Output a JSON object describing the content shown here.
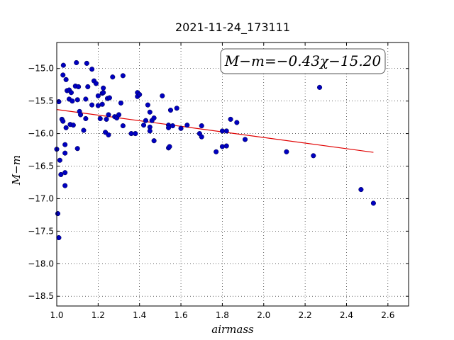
{
  "chart_data": {
    "type": "scatter",
    "title": "2021-11-24_173111",
    "xlabel": "airmass",
    "ylabel": "M−m",
    "xlim": [
      1.0,
      2.7
    ],
    "ylim": [
      -18.65,
      -14.6
    ],
    "x_ticks": [
      1.0,
      1.2,
      1.4,
      1.6,
      1.8,
      2.0,
      2.2,
      2.4,
      2.6
    ],
    "x_tick_labels": [
      "1.0",
      "1.2",
      "1.4",
      "1.6",
      "1.8",
      "2.0",
      "2.2",
      "2.4",
      "2.6"
    ],
    "y_ticks": [
      -15.0,
      -15.5,
      -16.0,
      -16.5,
      -17.0,
      -17.5,
      -18.0,
      -18.5
    ],
    "y_tick_labels": [
      "−15.0",
      "−15.5",
      "−16.0",
      "−16.5",
      "−17.0",
      "−17.5",
      "−18.0",
      "−18.5"
    ],
    "grid": true,
    "annotation": "M−m=−0.43χ−15.20",
    "fit": {
      "slope": -0.43,
      "intercept": -15.2,
      "x_range": [
        1.0,
        2.53
      ],
      "color": "#e00000"
    },
    "marker_color": "#0000c0",
    "points": [
      [
        1.0,
        -16.24
      ],
      [
        1.005,
        -17.23
      ],
      [
        1.01,
        -17.6
      ],
      [
        1.01,
        -15.51
      ],
      [
        1.015,
        -16.41
      ],
      [
        1.02,
        -16.63
      ],
      [
        1.025,
        -15.78
      ],
      [
        1.03,
        -15.81
      ],
      [
        1.03,
        -15.1
      ],
      [
        1.032,
        -14.95
      ],
      [
        1.04,
        -16.6
      ],
      [
        1.04,
        -16.8
      ],
      [
        1.04,
        -16.17
      ],
      [
        1.04,
        -16.3
      ],
      [
        1.045,
        -15.17
      ],
      [
        1.045,
        -15.91
      ],
      [
        1.05,
        -15.34
      ],
      [
        1.06,
        -15.47
      ],
      [
        1.06,
        -15.33
      ],
      [
        1.065,
        -15.86
      ],
      [
        1.07,
        -15.37
      ],
      [
        1.075,
        -15.5
      ],
      [
        1.08,
        -15.87
      ],
      [
        1.09,
        -15.27
      ],
      [
        1.095,
        -14.91
      ],
      [
        1.1,
        -16.23
      ],
      [
        1.1,
        -15.48
      ],
      [
        1.105,
        -15.28
      ],
      [
        1.11,
        -15.66
      ],
      [
        1.115,
        -15.71
      ],
      [
        1.13,
        -15.95
      ],
      [
        1.14,
        -15.47
      ],
      [
        1.14,
        -15.77
      ],
      [
        1.145,
        -14.92
      ],
      [
        1.15,
        -15.28
      ],
      [
        1.17,
        -15.56
      ],
      [
        1.17,
        -15.01
      ],
      [
        1.18,
        -15.19
      ],
      [
        1.19,
        -15.23
      ],
      [
        1.2,
        -15.57
      ],
      [
        1.2,
        -15.42
      ],
      [
        1.21,
        -15.77
      ],
      [
        1.22,
        -15.38
      ],
      [
        1.22,
        -15.55
      ],
      [
        1.225,
        -15.3
      ],
      [
        1.225,
        -15.37
      ],
      [
        1.235,
        -15.98
      ],
      [
        1.24,
        -15.78
      ],
      [
        1.245,
        -15.46
      ],
      [
        1.25,
        -15.71
      ],
      [
        1.25,
        -16.02
      ],
      [
        1.255,
        -15.45
      ],
      [
        1.27,
        -15.13
      ],
      [
        1.28,
        -15.74
      ],
      [
        1.29,
        -15.76
      ],
      [
        1.3,
        -15.71
      ],
      [
        1.31,
        -15.53
      ],
      [
        1.32,
        -15.88
      ],
      [
        1.32,
        -15.11
      ],
      [
        1.36,
        -16.0
      ],
      [
        1.38,
        -16.0
      ],
      [
        1.39,
        -15.43
      ],
      [
        1.39,
        -15.37
      ],
      [
        1.4,
        -15.4
      ],
      [
        1.42,
        -15.87
      ],
      [
        1.43,
        -15.8
      ],
      [
        1.44,
        -15.56
      ],
      [
        1.45,
        -15.67
      ],
      [
        1.45,
        -15.9
      ],
      [
        1.45,
        -15.96
      ],
      [
        1.46,
        -15.8
      ],
      [
        1.47,
        -16.11
      ],
      [
        1.47,
        -15.76
      ],
      [
        1.51,
        -15.42
      ],
      [
        1.54,
        -15.87
      ],
      [
        1.54,
        -15.91
      ],
      [
        1.54,
        -16.22
      ],
      [
        1.545,
        -16.2
      ],
      [
        1.55,
        -15.64
      ],
      [
        1.56,
        -15.88
      ],
      [
        1.58,
        -15.61
      ],
      [
        1.6,
        -15.92
      ],
      [
        1.63,
        -15.87
      ],
      [
        1.69,
        -16.0
      ],
      [
        1.7,
        -15.88
      ],
      [
        1.7,
        -16.05
      ],
      [
        1.77,
        -16.28
      ],
      [
        1.8,
        -15.96
      ],
      [
        1.8,
        -16.2
      ],
      [
        1.82,
        -16.19
      ],
      [
        1.82,
        -15.96
      ],
      [
        1.84,
        -15.78
      ],
      [
        1.87,
        -15.83
      ],
      [
        1.91,
        -16.09
      ],
      [
        2.11,
        -16.28
      ],
      [
        2.24,
        -16.34
      ],
      [
        2.27,
        -15.29
      ],
      [
        2.47,
        -16.86
      ],
      [
        2.53,
        -17.07
      ]
    ]
  }
}
